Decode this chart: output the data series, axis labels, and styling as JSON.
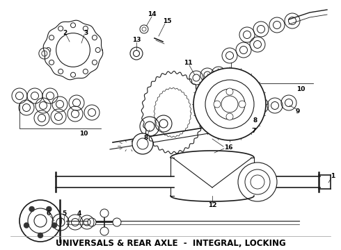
{
  "title": "UNIVERSALS & REAR AXLE  -  INTEGRAL, LOCKING",
  "title_fontsize": 8.5,
  "title_fontweight": "bold",
  "bg_color": "#ffffff",
  "line_color": "#1a1a1a",
  "label_color": "#000000",
  "fig_width": 4.9,
  "fig_height": 3.6,
  "dpi": 100
}
